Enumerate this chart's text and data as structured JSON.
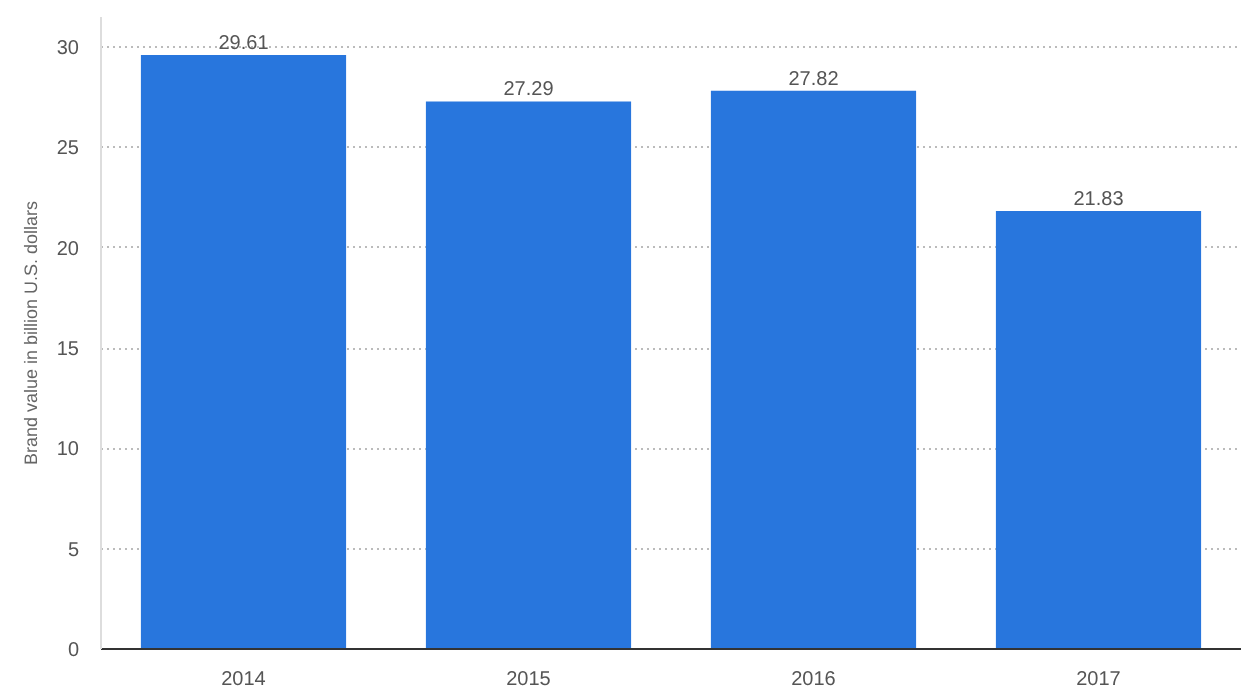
{
  "chart_data": {
    "type": "bar",
    "ylabel": "Brand value in billion U.S. dollars",
    "categories": [
      "2014",
      "2015",
      "2016",
      "2017"
    ],
    "values": [
      29.61,
      27.29,
      27.82,
      21.83
    ],
    "color": "#2876dd",
    "ylim": [
      0,
      31.5
    ],
    "yticks": [
      0,
      5,
      10,
      15,
      20,
      25,
      30
    ],
    "grid": "y",
    "data_labels": true
  }
}
